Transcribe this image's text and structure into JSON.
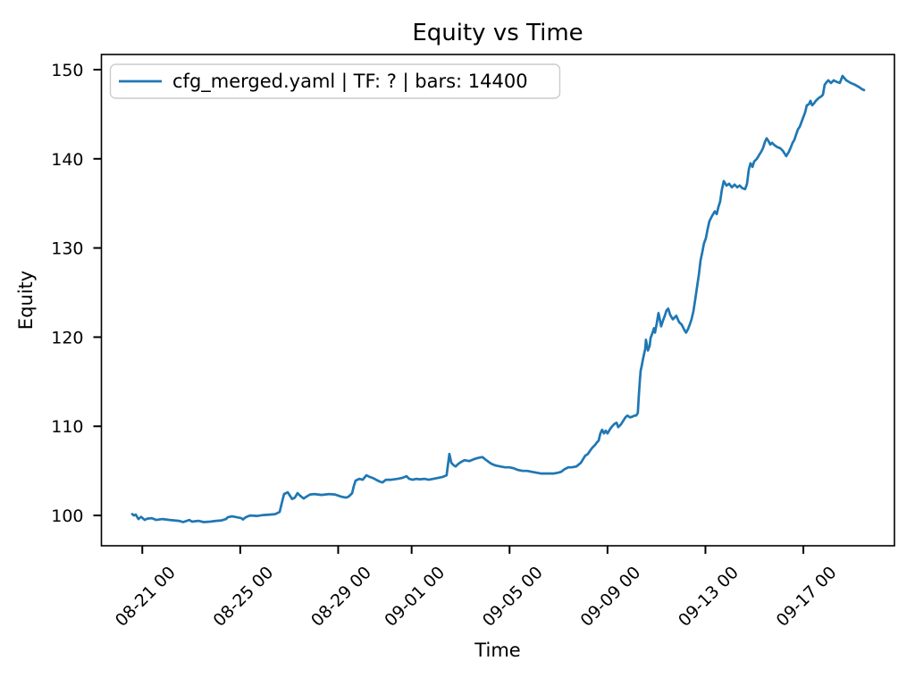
{
  "chart_data": {
    "type": "line",
    "title": "Equity vs Time",
    "xlabel": "Time",
    "ylabel": "Equity",
    "grid": false,
    "legend_position": "upper left",
    "legend_frame": {
      "border_color": "#cccccc",
      "background": "#ffffff"
    },
    "x_unit": "days since 08-21 00:00",
    "xlim": [
      -1.67,
      30.72
    ],
    "ylim": [
      96.6,
      151.7
    ],
    "y_ticks": [
      100,
      110,
      120,
      130,
      140,
      150
    ],
    "x_ticks": [
      {
        "t": 0,
        "label": "08-21 00"
      },
      {
        "t": 4,
        "label": "08-25 00"
      },
      {
        "t": 8,
        "label": "08-29 00"
      },
      {
        "t": 11,
        "label": "09-01 00"
      },
      {
        "t": 15,
        "label": "09-05 00"
      },
      {
        "t": 19,
        "label": "09-09 00"
      },
      {
        "t": 23,
        "label": "09-13 00"
      },
      {
        "t": 27,
        "label": "09-17 00"
      }
    ],
    "series": [
      {
        "name": "cfg_merged.yaml | TF: ? | bars: 14400",
        "color": "#1f77b4",
        "points": [
          [
            -0.41,
            100.15
          ],
          [
            -0.34,
            100.0
          ],
          [
            -0.27,
            100.1
          ],
          [
            -0.16,
            99.6
          ],
          [
            -0.05,
            99.85
          ],
          [
            0.1,
            99.5
          ],
          [
            0.21,
            99.65
          ],
          [
            0.39,
            99.7
          ],
          [
            0.57,
            99.5
          ],
          [
            0.83,
            99.6
          ],
          [
            1.12,
            99.5
          ],
          [
            1.49,
            99.4
          ],
          [
            1.67,
            99.25
          ],
          [
            1.92,
            99.5
          ],
          [
            2.03,
            99.3
          ],
          [
            2.29,
            99.4
          ],
          [
            2.51,
            99.25
          ],
          [
            2.76,
            99.3
          ],
          [
            3.02,
            99.4
          ],
          [
            3.24,
            99.45
          ],
          [
            3.42,
            99.6
          ],
          [
            3.49,
            99.8
          ],
          [
            3.67,
            99.9
          ],
          [
            3.86,
            99.8
          ],
          [
            4.04,
            99.7
          ],
          [
            4.11,
            99.55
          ],
          [
            4.22,
            99.8
          ],
          [
            4.4,
            100.0
          ],
          [
            4.7,
            99.95
          ],
          [
            4.95,
            100.05
          ],
          [
            5.21,
            100.1
          ],
          [
            5.43,
            100.15
          ],
          [
            5.61,
            100.4
          ],
          [
            5.68,
            101.2
          ],
          [
            5.79,
            102.4
          ],
          [
            5.94,
            102.6
          ],
          [
            6.12,
            101.85
          ],
          [
            6.23,
            102.0
          ],
          [
            6.34,
            102.5
          ],
          [
            6.45,
            102.2
          ],
          [
            6.59,
            101.9
          ],
          [
            6.7,
            102.1
          ],
          [
            6.85,
            102.35
          ],
          [
            7.03,
            102.4
          ],
          [
            7.32,
            102.3
          ],
          [
            7.62,
            102.4
          ],
          [
            7.87,
            102.35
          ],
          [
            8.13,
            102.1
          ],
          [
            8.31,
            102.0
          ],
          [
            8.42,
            102.1
          ],
          [
            8.57,
            102.5
          ],
          [
            8.64,
            103.3
          ],
          [
            8.71,
            103.9
          ],
          [
            8.86,
            104.1
          ],
          [
            9.0,
            104.0
          ],
          [
            9.15,
            104.5
          ],
          [
            9.26,
            104.35
          ],
          [
            9.41,
            104.2
          ],
          [
            9.55,
            104.0
          ],
          [
            9.7,
            103.8
          ],
          [
            9.81,
            103.7
          ],
          [
            9.95,
            104.0
          ],
          [
            10.17,
            104.0
          ],
          [
            10.43,
            104.1
          ],
          [
            10.61,
            104.2
          ],
          [
            10.79,
            104.4
          ],
          [
            10.9,
            104.1
          ],
          [
            11.05,
            104.0
          ],
          [
            11.19,
            104.1
          ],
          [
            11.34,
            104.05
          ],
          [
            11.52,
            104.1
          ],
          [
            11.7,
            104.0
          ],
          [
            11.89,
            104.1
          ],
          [
            12.07,
            104.2
          ],
          [
            12.25,
            104.3
          ],
          [
            12.43,
            104.5
          ],
          [
            12.54,
            106.9
          ],
          [
            12.62,
            105.9
          ],
          [
            12.73,
            105.6
          ],
          [
            12.8,
            105.5
          ],
          [
            12.91,
            105.8
          ],
          [
            13.02,
            106.0
          ],
          [
            13.16,
            106.2
          ],
          [
            13.35,
            106.1
          ],
          [
            13.53,
            106.3
          ],
          [
            13.71,
            106.45
          ],
          [
            13.89,
            106.55
          ],
          [
            14.0,
            106.3
          ],
          [
            14.15,
            106.0
          ],
          [
            14.26,
            105.8
          ],
          [
            14.44,
            105.6
          ],
          [
            14.62,
            105.5
          ],
          [
            14.81,
            105.4
          ],
          [
            14.99,
            105.4
          ],
          [
            15.17,
            105.3
          ],
          [
            15.35,
            105.1
          ],
          [
            15.54,
            105.0
          ],
          [
            15.72,
            105.0
          ],
          [
            15.9,
            104.9
          ],
          [
            16.08,
            104.8
          ],
          [
            16.27,
            104.7
          ],
          [
            16.45,
            104.7
          ],
          [
            16.63,
            104.7
          ],
          [
            16.81,
            104.7
          ],
          [
            17.0,
            104.8
          ],
          [
            17.11,
            104.9
          ],
          [
            17.25,
            105.2
          ],
          [
            17.4,
            105.4
          ],
          [
            17.54,
            105.4
          ],
          [
            17.73,
            105.5
          ],
          [
            17.91,
            105.9
          ],
          [
            18.09,
            106.7
          ],
          [
            18.2,
            106.9
          ],
          [
            18.27,
            107.2
          ],
          [
            18.38,
            107.6
          ],
          [
            18.49,
            107.9
          ],
          [
            18.57,
            108.2
          ],
          [
            18.64,
            108.4
          ],
          [
            18.71,
            109.2
          ],
          [
            18.78,
            109.6
          ],
          [
            18.86,
            109.2
          ],
          [
            18.93,
            109.5
          ],
          [
            19.0,
            109.2
          ],
          [
            19.11,
            109.7
          ],
          [
            19.19,
            110.0
          ],
          [
            19.3,
            110.3
          ],
          [
            19.37,
            110.4
          ],
          [
            19.44,
            109.9
          ],
          [
            19.55,
            110.2
          ],
          [
            19.66,
            110.7
          ],
          [
            19.73,
            111.0
          ],
          [
            19.81,
            111.2
          ],
          [
            19.92,
            111.0
          ],
          [
            20.03,
            111.1
          ],
          [
            20.1,
            111.2
          ],
          [
            20.17,
            111.2
          ],
          [
            20.24,
            111.5
          ],
          [
            20.28,
            113.4
          ],
          [
            20.32,
            115.0
          ],
          [
            20.35,
            116.2
          ],
          [
            20.39,
            116.7
          ],
          [
            20.46,
            117.7
          ],
          [
            20.54,
            118.7
          ],
          [
            20.57,
            119.7
          ],
          [
            20.65,
            118.5
          ],
          [
            20.72,
            119.0
          ],
          [
            20.76,
            119.9
          ],
          [
            20.83,
            120.4
          ],
          [
            20.9,
            121.0
          ],
          [
            20.94,
            120.5
          ],
          [
            21.01,
            121.5
          ],
          [
            21.08,
            122.7
          ],
          [
            21.12,
            122.2
          ],
          [
            21.19,
            121.2
          ],
          [
            21.27,
            121.9
          ],
          [
            21.34,
            122.4
          ],
          [
            21.41,
            123.0
          ],
          [
            21.48,
            123.2
          ],
          [
            21.56,
            122.5
          ],
          [
            21.67,
            122.0
          ],
          [
            21.81,
            122.4
          ],
          [
            21.92,
            121.7
          ],
          [
            22.03,
            121.4
          ],
          [
            22.14,
            120.8
          ],
          [
            22.21,
            120.5
          ],
          [
            22.29,
            120.9
          ],
          [
            22.36,
            121.4
          ],
          [
            22.43,
            122.0
          ],
          [
            22.51,
            122.9
          ],
          [
            22.58,
            124.2
          ],
          [
            22.65,
            125.5
          ],
          [
            22.73,
            127.0
          ],
          [
            22.8,
            128.6
          ],
          [
            22.87,
            129.5
          ],
          [
            22.94,
            130.5
          ],
          [
            23.02,
            131.1
          ],
          [
            23.09,
            132.1
          ],
          [
            23.16,
            133.0
          ],
          [
            23.27,
            133.6
          ],
          [
            23.38,
            134.1
          ],
          [
            23.46,
            133.8
          ],
          [
            23.53,
            134.6
          ],
          [
            23.6,
            135.2
          ],
          [
            23.67,
            136.5
          ],
          [
            23.75,
            137.5
          ],
          [
            23.86,
            137.0
          ],
          [
            23.97,
            137.2
          ],
          [
            24.08,
            136.8
          ],
          [
            24.19,
            137.1
          ],
          [
            24.3,
            136.8
          ],
          [
            24.4,
            137.0
          ],
          [
            24.51,
            136.7
          ],
          [
            24.62,
            136.6
          ],
          [
            24.7,
            137.2
          ],
          [
            24.77,
            138.8
          ],
          [
            24.84,
            139.5
          ],
          [
            24.92,
            139.1
          ],
          [
            24.99,
            139.7
          ],
          [
            25.1,
            140.0
          ],
          [
            25.21,
            140.5
          ],
          [
            25.28,
            140.8
          ],
          [
            25.35,
            141.2
          ],
          [
            25.43,
            141.9
          ],
          [
            25.5,
            142.3
          ],
          [
            25.57,
            142.0
          ],
          [
            25.65,
            141.6
          ],
          [
            25.72,
            141.8
          ],
          [
            25.83,
            141.5
          ],
          [
            25.94,
            141.3
          ],
          [
            26.05,
            141.2
          ],
          [
            26.16,
            140.9
          ],
          [
            26.3,
            140.3
          ],
          [
            26.41,
            140.8
          ],
          [
            26.49,
            141.3
          ],
          [
            26.56,
            141.8
          ],
          [
            26.63,
            142.1
          ],
          [
            26.7,
            142.7
          ],
          [
            26.78,
            143.3
          ],
          [
            26.85,
            143.6
          ],
          [
            26.92,
            144.1
          ],
          [
            27.0,
            144.7
          ],
          [
            27.07,
            145.2
          ],
          [
            27.14,
            146.0
          ],
          [
            27.22,
            146.1
          ],
          [
            27.29,
            146.5
          ],
          [
            27.36,
            146.0
          ],
          [
            27.43,
            146.2
          ],
          [
            27.51,
            146.5
          ],
          [
            27.62,
            146.8
          ],
          [
            27.73,
            147.0
          ],
          [
            27.8,
            147.2
          ],
          [
            27.87,
            148.3
          ],
          [
            27.95,
            148.6
          ],
          [
            28.02,
            148.8
          ],
          [
            28.13,
            148.5
          ],
          [
            28.24,
            148.8
          ],
          [
            28.38,
            148.6
          ],
          [
            28.49,
            148.5
          ],
          [
            28.6,
            149.3
          ],
          [
            28.75,
            148.8
          ],
          [
            28.93,
            148.5
          ],
          [
            29.11,
            148.3
          ],
          [
            29.3,
            148.0
          ],
          [
            29.4,
            147.8
          ],
          [
            29.48,
            147.7
          ]
        ]
      }
    ]
  }
}
